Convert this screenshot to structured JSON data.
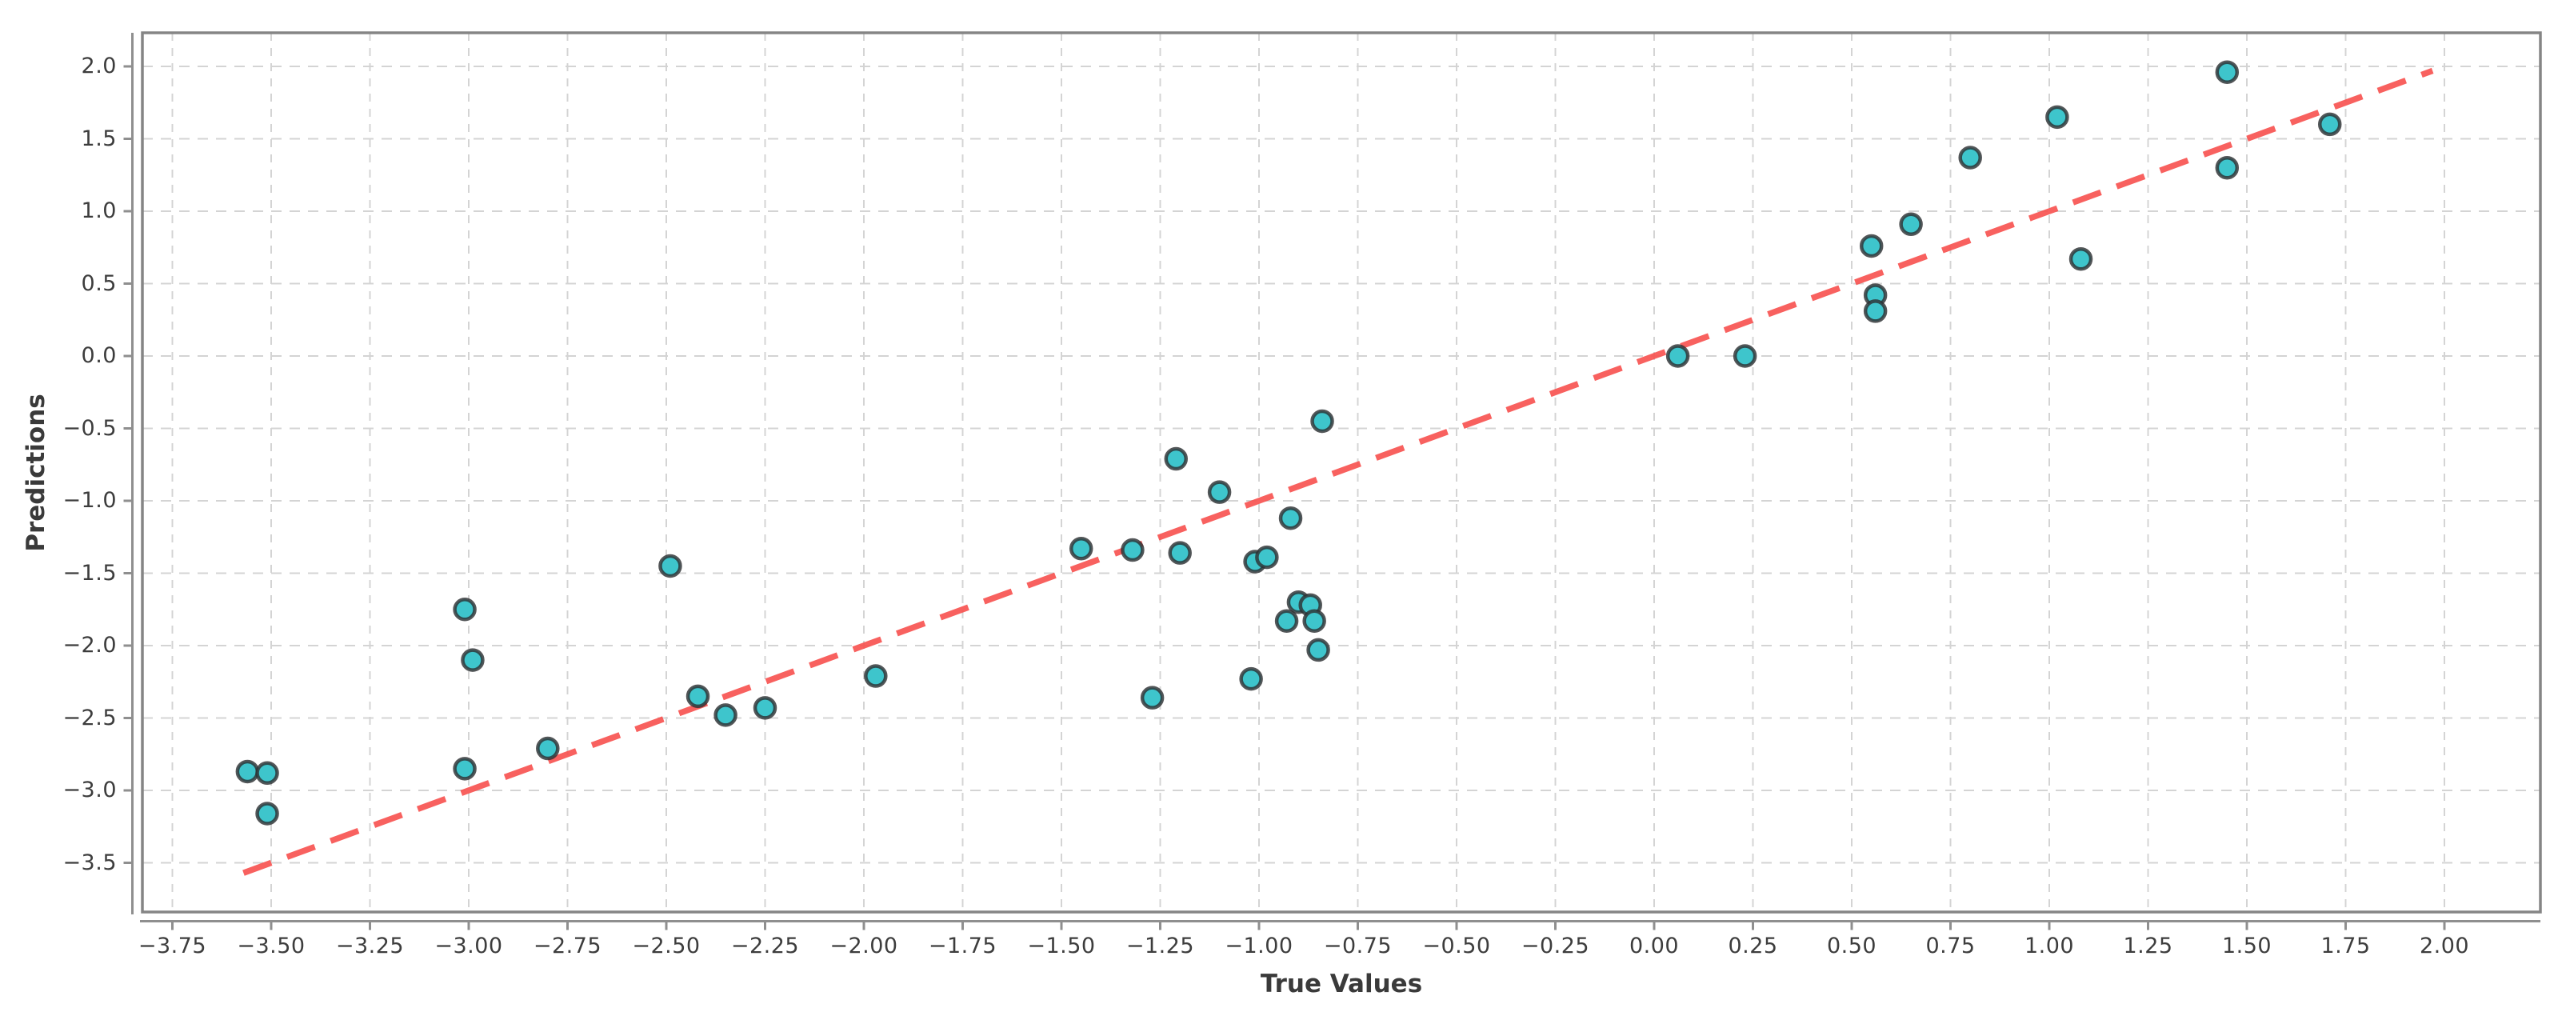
{
  "chart_data": {
    "type": "scatter",
    "title": "",
    "xlabel": "True Values",
    "ylabel": "Predictions",
    "xlim": [
      -3.84,
      2.24
    ],
    "ylim": [
      -3.85,
      2.23
    ],
    "grid": "both-dashed",
    "legend_position": "none",
    "x_ticks": [
      -3.75,
      -3.5,
      -3.25,
      -3.0,
      -2.75,
      -2.5,
      -2.25,
      -2.0,
      -1.75,
      -1.5,
      -1.25,
      -1.0,
      -0.75,
      -0.5,
      -0.25,
      0.0,
      0.25,
      0.5,
      0.75,
      1.0,
      1.25,
      1.5,
      1.75,
      2.0
    ],
    "x_tick_labels": [
      "−3.75",
      "−3.50",
      "−3.25",
      "−3.00",
      "−2.75",
      "−2.50",
      "−2.25",
      "−2.00",
      "−1.75",
      "−1.50",
      "−1.25",
      "−1.00",
      "−0.75",
      "−0.50",
      "−0.25",
      "0.00",
      "0.25",
      "0.50",
      "0.75",
      "1.00",
      "1.25",
      "1.50",
      "1.75",
      "2.00"
    ],
    "y_ticks": [
      2.0,
      1.5,
      1.0,
      0.5,
      0.0,
      -0.5,
      -1.0,
      -1.5,
      -2.0,
      -2.5,
      -3.0,
      -3.5
    ],
    "y_tick_labels": [
      "2.0",
      "1.5",
      "1.0",
      "0.5",
      "0.0",
      "−0.5",
      "−1.0",
      "−1.5",
      "−2.0",
      "−2.5",
      "−3.0",
      "−3.5"
    ],
    "points": [
      [
        -3.56,
        -2.87
      ],
      [
        -3.51,
        -2.88
      ],
      [
        -3.51,
        -3.16
      ],
      [
        -3.01,
        -2.85
      ],
      [
        -3.01,
        -1.75
      ],
      [
        -2.99,
        -2.1
      ],
      [
        -2.8,
        -2.71
      ],
      [
        -2.49,
        -1.45
      ],
      [
        -2.42,
        -2.35
      ],
      [
        -2.35,
        -2.48
      ],
      [
        -2.25,
        -2.43
      ],
      [
        -1.97,
        -2.21
      ],
      [
        -1.45,
        -1.33
      ],
      [
        -1.32,
        -1.34
      ],
      [
        -1.2,
        -1.36
      ],
      [
        -1.21,
        -0.71
      ],
      [
        -1.1,
        -0.94
      ],
      [
        -0.92,
        -1.12
      ],
      [
        -1.01,
        -1.42
      ],
      [
        -0.98,
        -1.39
      ],
      [
        -0.9,
        -1.7
      ],
      [
        -0.87,
        -1.72
      ],
      [
        -0.93,
        -1.83
      ],
      [
        -0.86,
        -1.83
      ],
      [
        -0.85,
        -2.03
      ],
      [
        -1.02,
        -2.23
      ],
      [
        -1.27,
        -2.36
      ],
      [
        -0.84,
        -0.45
      ],
      [
        0.06,
        0.0
      ],
      [
        0.23,
        0.0
      ],
      [
        0.56,
        0.42
      ],
      [
        0.56,
        0.31
      ],
      [
        0.55,
        0.76
      ],
      [
        0.65,
        0.91
      ],
      [
        0.8,
        1.37
      ],
      [
        1.02,
        1.65
      ],
      [
        1.08,
        0.67
      ],
      [
        1.45,
        1.96
      ],
      [
        1.45,
        1.3
      ],
      [
        1.71,
        1.6
      ]
    ],
    "identity_line": {
      "style": "dashed",
      "equation": "y = x",
      "from": [
        -3.57,
        -3.57
      ],
      "to": [
        1.97,
        1.97
      ]
    },
    "colors": {
      "marker_fill": "#3ec5cc",
      "marker_edge": "rgba(45,49,51,0.82)",
      "line": "#f8514e",
      "grid": "#d4d4d4",
      "frame": "#858585",
      "axis": "#8f8f8f",
      "text": "#3d3d3d",
      "background": "#ffffff"
    }
  }
}
